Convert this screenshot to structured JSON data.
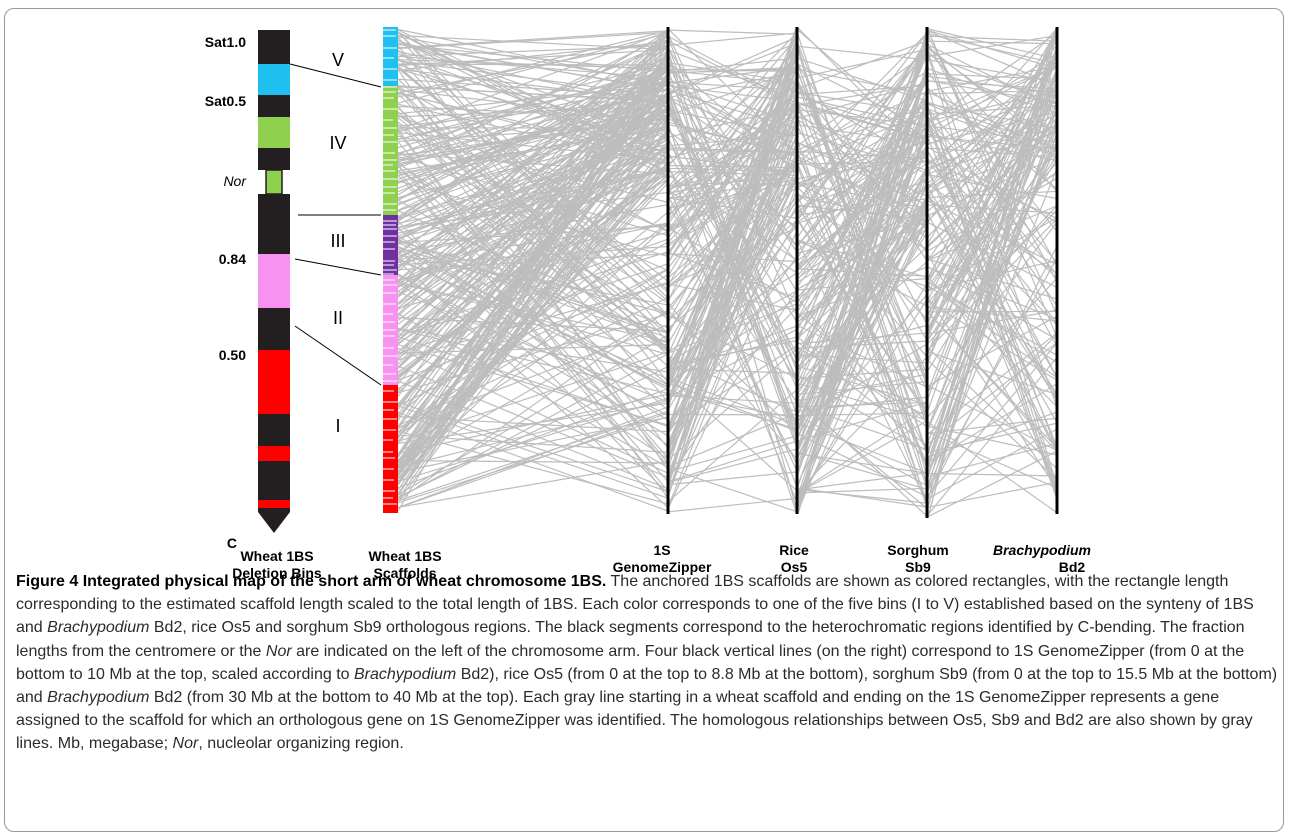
{
  "figure": {
    "left_labels": [
      {
        "id": "sat10",
        "text": "Sat1.0",
        "italic": false
      },
      {
        "id": "sat05",
        "text": "Sat0.5",
        "italic": false
      },
      {
        "id": "nor",
        "text": "Nor",
        "italic": true
      },
      {
        "id": "f084",
        "text": "0.84",
        "italic": false
      },
      {
        "id": "f050",
        "text": "0.50",
        "italic": false
      },
      {
        "id": "cen",
        "text": "C",
        "italic": false
      }
    ],
    "bins": [
      "V",
      "IV",
      "III",
      "II",
      "I"
    ],
    "axis_titles": {
      "deletion_bins": [
        "Wheat 1BS",
        "Deletion Bins"
      ],
      "scaffolds": [
        "Wheat 1BS",
        "Scaffolds"
      ],
      "genomezipper": [
        "1S",
        "GenomeZipper"
      ],
      "rice": [
        "Rice",
        "Os5"
      ],
      "sorghum": [
        "Sorghum",
        "Sb9"
      ],
      "brachypodium": [
        "Brachypodium",
        "Bd2"
      ]
    },
    "colors": {
      "bin_V": "#1ec0ef",
      "bin_IV": "#8fd14f",
      "bin_III": "#7030a0",
      "bin_II": "#f792f0",
      "bin_I": "#ff0000",
      "heterochromatin": "#231f20",
      "synteny_line": "#bdbdbd"
    }
  },
  "caption": {
    "figure_number": "Figure 4",
    "title": "Integrated physical map of the short arm of wheat chromosome 1BS.",
    "runs": [
      {
        "t": " The anchored 1BS scaffolds are shown as colored rectangles, with the rectangle length corresponding to the estimated scaffold length scaled to the total length of 1BS. Each color corresponds to one of the five bins (I to V) established based on the synteny of 1BS and ",
        "i": false
      },
      {
        "t": "Brachypodium",
        "i": true
      },
      {
        "t": " Bd2, rice Os5 and sorghum Sb9  orthologous regions. The black segments correspond to the heterochromatic regions identified by C-bending. The fraction lengths from the centromere or the ",
        "i": false
      },
      {
        "t": "Nor",
        "i": true
      },
      {
        "t": " are indicated on the left of the chromosome arm. Four black vertical lines (on the right) correspond to 1S GenomeZipper (from 0 at the bottom to 10 Mb at the top, scaled according to ",
        "i": false
      },
      {
        "t": "Brachypodium",
        "i": true
      },
      {
        "t": " Bd2), rice Os5 (from 0 at the top to 8.8 Mb at the bottom), sorghum Sb9 (from 0 at the top to 15.5 Mb at the bottom) and ",
        "i": false
      },
      {
        "t": "Brachypodium",
        "i": true
      },
      {
        "t": " Bd2 (from 30 Mb at the bottom to 40 Mb at the top). Each gray line starting in a wheat scaffold and ending on the 1S GenomeZipper represents a gene assigned to the scaffold for which an orthologous gene on 1S GenomeZipper was identified. The homologous relationships between Os5, Sb9 and Bd2 are also shown by gray lines. Mb, megabase; ",
        "i": false
      },
      {
        "t": "Nor",
        "i": true
      },
      {
        "t": ", nucleolar organizing region.",
        "i": false
      }
    ]
  }
}
